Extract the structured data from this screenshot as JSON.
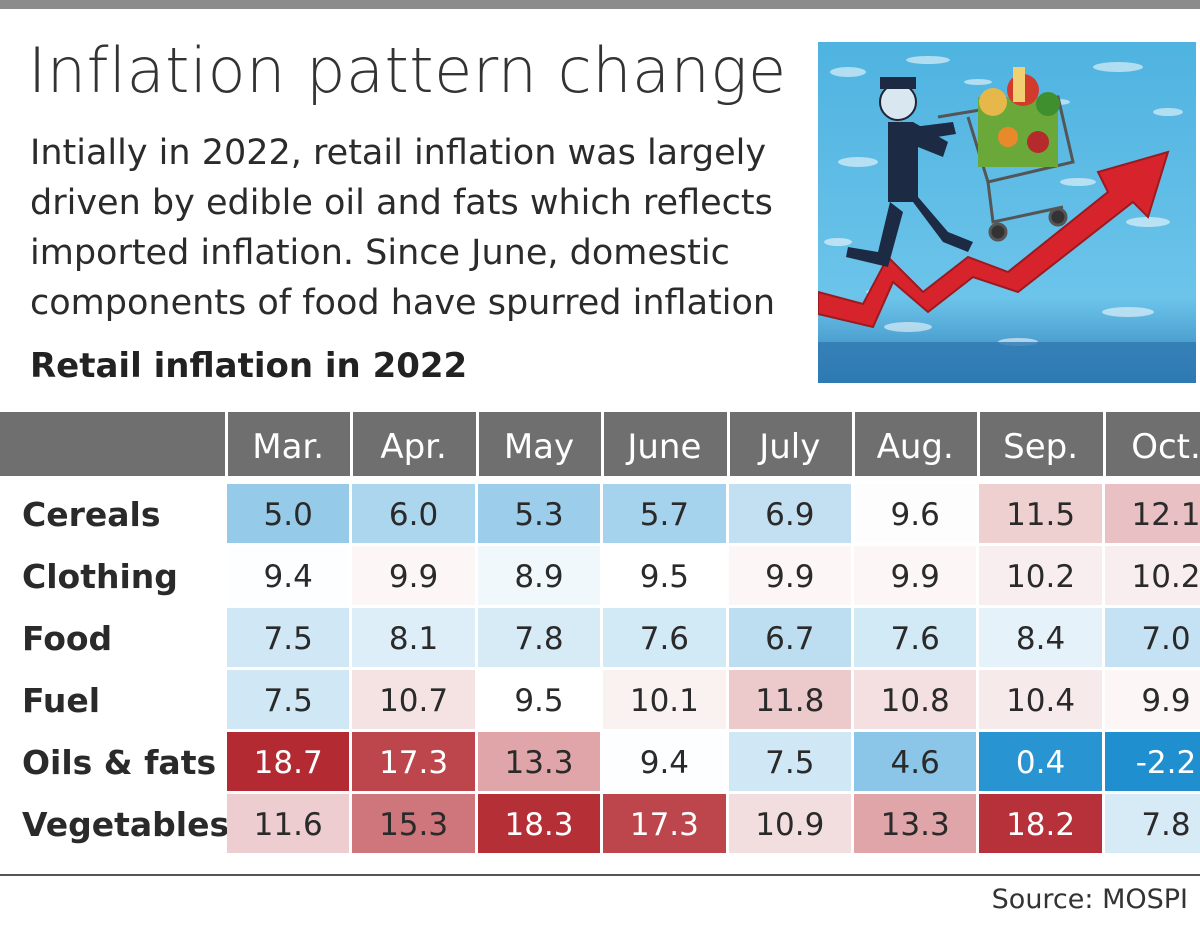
{
  "headline": "Inflation pattern change",
  "dek_lines": [
    "Intially in 2022, retail inflation was largely",
    "driven by edible oil and fats which reflects",
    "imported inflation. Since June, domestic",
    "components of food have spurred inflation"
  ],
  "source": "Source: MOSPI",
  "colors": {
    "low": "#1f8fd0",
    "mid": "#ffffff",
    "high": "#b32a32",
    "header": "#6f6f6f"
  },
  "chart_data": {
    "type": "heatmap",
    "title": "Retail inflation in 2022",
    "columns": [
      "Mar.",
      "Apr.",
      "May",
      "June",
      "July",
      "Aug.",
      "Sep.",
      "Oct."
    ],
    "rows": [
      {
        "label": "Cereals",
        "values": [
          "5.0",
          "6.0",
          "5.3",
          "5.7",
          "6.9",
          "9.6",
          "11.5",
          "12.1"
        ]
      },
      {
        "label": "Clothing",
        "values": [
          "9.4",
          "9.9",
          "8.9",
          "9.5",
          "9.9",
          "9.9",
          "10.2",
          "10.2"
        ]
      },
      {
        "label": "Food",
        "values": [
          "7.5",
          "8.1",
          "7.8",
          "7.6",
          "6.7",
          "7.6",
          "8.4",
          "7.0"
        ]
      },
      {
        "label": "Fuel",
        "values": [
          "7.5",
          "10.7",
          "9.5",
          "10.1",
          "11.8",
          "10.8",
          "10.4",
          "9.9"
        ]
      },
      {
        "label": "Oils & fats",
        "values": [
          "18.7",
          "17.3",
          "13.3",
          "9.4",
          "7.5",
          "4.6",
          "0.4",
          "-2.2"
        ]
      },
      {
        "label": "Vegetables",
        "values": [
          "11.6",
          "15.3",
          "18.3",
          "17.3",
          "10.9",
          "13.3",
          "18.2",
          "7.8"
        ]
      }
    ]
  }
}
